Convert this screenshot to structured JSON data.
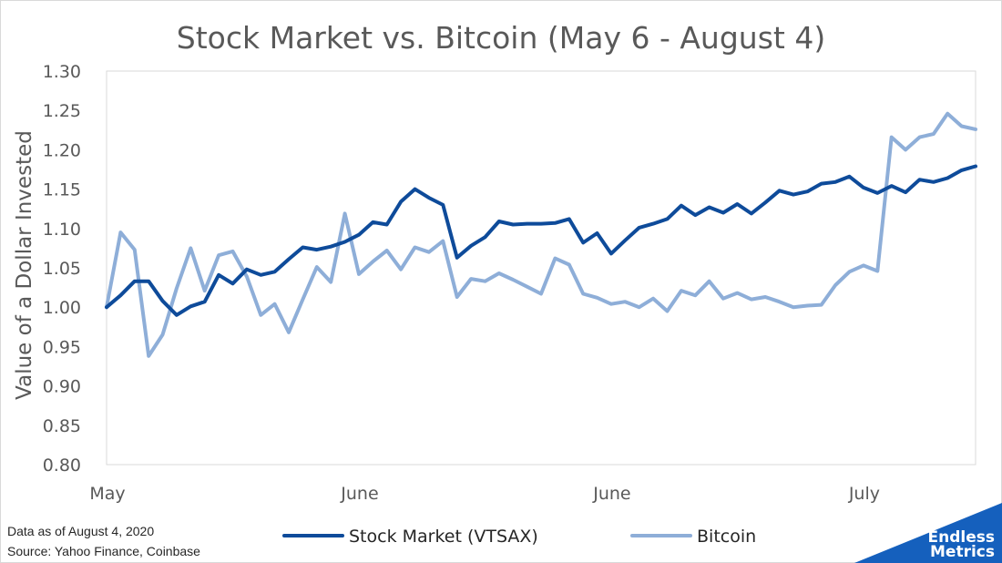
{
  "chart_data": {
    "type": "line",
    "title": "Stock Market vs. Bitcoin (May 6 - August 4)",
    "xlabel": "",
    "ylabel": "Value of a Dollar Invested",
    "ylim": [
      0.8,
      1.3
    ],
    "ytick_step": 0.05,
    "yticks": [
      "0.80",
      "0.85",
      "0.90",
      "0.95",
      "1.00",
      "1.05",
      "1.10",
      "1.15",
      "1.20",
      "1.25",
      "1.30"
    ],
    "xticks": [
      {
        "label": "May",
        "index": 0
      },
      {
        "label": "June",
        "index": 18
      },
      {
        "label": "June",
        "index": 36
      },
      {
        "label": "July",
        "index": 54
      }
    ],
    "grid": false,
    "legend": "bottom",
    "series": [
      {
        "name": "Stock Market (VTSAX)",
        "color": "#0e4b9a",
        "values": [
          1.0,
          1.015,
          1.033,
          1.033,
          1.008,
          0.99,
          1.001,
          1.007,
          1.041,
          1.03,
          1.048,
          1.041,
          1.045,
          1.061,
          1.076,
          1.073,
          1.077,
          1.083,
          1.092,
          1.108,
          1.105,
          1.134,
          1.15,
          1.139,
          1.13,
          1.063,
          1.078,
          1.089,
          1.109,
          1.105,
          1.106,
          1.106,
          1.107,
          1.112,
          1.082,
          1.094,
          1.068,
          1.085,
          1.101,
          1.106,
          1.112,
          1.129,
          1.117,
          1.127,
          1.12,
          1.131,
          1.119,
          1.133,
          1.148,
          1.143,
          1.147,
          1.157,
          1.159,
          1.166,
          1.152,
          1.145,
          1.154,
          1.146,
          1.162,
          1.159,
          1.164,
          1.174,
          1.179
        ]
      },
      {
        "name": "Bitcoin",
        "color": "#8eaed8",
        "values": [
          1.0,
          1.095,
          1.073,
          0.938,
          0.965,
          1.024,
          1.075,
          1.021,
          1.066,
          1.071,
          1.039,
          0.99,
          1.004,
          0.968,
          1.01,
          1.051,
          1.032,
          1.119,
          1.042,
          1.058,
          1.072,
          1.048,
          1.076,
          1.07,
          1.084,
          1.013,
          1.036,
          1.033,
          1.043,
          1.035,
          1.026,
          1.017,
          1.062,
          1.054,
          1.017,
          1.012,
          1.004,
          1.007,
          1.0,
          1.011,
          0.995,
          1.021,
          1.015,
          1.033,
          1.011,
          1.018,
          1.01,
          1.013,
          1.007,
          1.0,
          1.002,
          1.003,
          1.028,
          1.045,
          1.053,
          1.046,
          1.216,
          1.2,
          1.216,
          1.22,
          1.246,
          1.23,
          1.226
        ]
      }
    ]
  },
  "footnotes": {
    "line1": "Data as of August 4, 2020",
    "line2": "Source: Yahoo Finance, Coinbase"
  },
  "brand": {
    "line1": "Endless",
    "line2": "Metrics",
    "color": "#1560bd"
  }
}
